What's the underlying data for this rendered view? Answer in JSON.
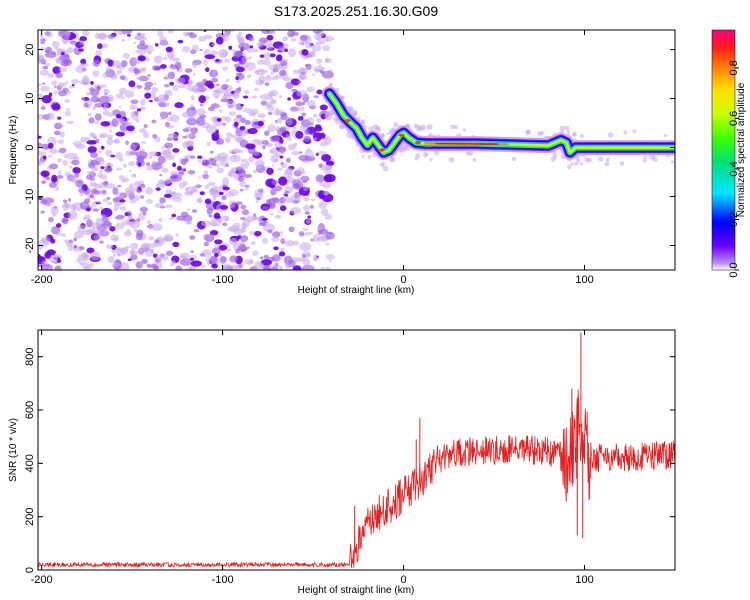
{
  "title": "S173.2025.251.16.30.G09",
  "colors": {
    "snr_line": "#e62020",
    "axis": "#000000",
    "noise": "#8a2be2"
  },
  "chart_data": [
    {
      "type": "heatmap",
      "title": "S173.2025.251.16.30.G09",
      "xlabel": "Height of straight line (km)",
      "ylabel": "Frequency (Hz)",
      "xlim": [
        -202,
        150
      ],
      "ylim": [
        -25,
        24
      ],
      "xticks": [
        -200,
        -100,
        0,
        100
      ],
      "yticks": [
        -20,
        -10,
        0,
        10,
        20
      ],
      "noise_region_x": [
        -202,
        -40
      ],
      "ridge_points": [
        {
          "x": -41,
          "y": 11
        },
        {
          "x": -37,
          "y": 9
        },
        {
          "x": -33,
          "y": 6.5
        },
        {
          "x": -29,
          "y": 5
        },
        {
          "x": -26,
          "y": 4
        },
        {
          "x": -23,
          "y": 2
        },
        {
          "x": -20,
          "y": 0.5
        },
        {
          "x": -17,
          "y": 2
        },
        {
          "x": -14,
          "y": 0.5
        },
        {
          "x": -11,
          "y": -1
        },
        {
          "x": -8,
          "y": -0.5
        },
        {
          "x": -5,
          "y": 1
        },
        {
          "x": -2,
          "y": 2.5
        },
        {
          "x": 0,
          "y": 3
        },
        {
          "x": 3,
          "y": 2
        },
        {
          "x": 7,
          "y": 1
        },
        {
          "x": 12,
          "y": 0.8
        },
        {
          "x": 20,
          "y": 0.8
        },
        {
          "x": 40,
          "y": 0.8
        },
        {
          "x": 60,
          "y": 0.6
        },
        {
          "x": 80,
          "y": 0.4
        },
        {
          "x": 87,
          "y": 1.5
        },
        {
          "x": 90,
          "y": 1
        },
        {
          "x": 92,
          "y": -1
        },
        {
          "x": 95,
          "y": 0
        },
        {
          "x": 100,
          "y": 0
        },
        {
          "x": 120,
          "y": 0
        },
        {
          "x": 150,
          "y": 0
        }
      ],
      "colorbar": {
        "label": "Normalized spectral amplitude",
        "range": [
          0,
          0.95
        ],
        "ticks": [
          "0.0",
          "0.2",
          "0.4",
          "0.6",
          "0.8"
        ]
      }
    },
    {
      "type": "line",
      "xlabel": "Height of straight line (km)",
      "ylabel": "SNR (10 * v/v)",
      "xlim": [
        -202,
        150
      ],
      "ylim": [
        0,
        900
      ],
      "xticks": [
        -200,
        -100,
        0,
        100
      ],
      "yticks": [
        0,
        200,
        400,
        600,
        800
      ],
      "series": [
        {
          "name": "SNR",
          "x": [
            -202,
            -150,
            -100,
            -50,
            -30,
            -26,
            -22,
            -18,
            -14,
            -10,
            -6,
            -2,
            0,
            4,
            8,
            12,
            16,
            20,
            25,
            30,
            40,
            50,
            60,
            70,
            80,
            85,
            90,
            93,
            95,
            97,
            99,
            101,
            104,
            110,
            120,
            130,
            140,
            150
          ],
          "y": [
            20,
            20,
            20,
            20,
            20,
            80,
            160,
            180,
            210,
            230,
            250,
            270,
            290,
            310,
            330,
            350,
            380,
            410,
            430,
            440,
            445,
            450,
            450,
            450,
            445,
            430,
            420,
            450,
            480,
            550,
            520,
            440,
            420,
            420,
            420,
            425,
            430,
            430
          ]
        }
      ],
      "spikes": [
        {
          "x": -27,
          "y": 240
        },
        {
          "x": 7,
          "y": 490
        },
        {
          "x": 9,
          "y": 570
        },
        {
          "x": 93,
          "y": 680
        },
        {
          "x": 96,
          "y": 130
        },
        {
          "x": 98,
          "y": 890
        },
        {
          "x": 99,
          "y": 120
        }
      ]
    }
  ]
}
